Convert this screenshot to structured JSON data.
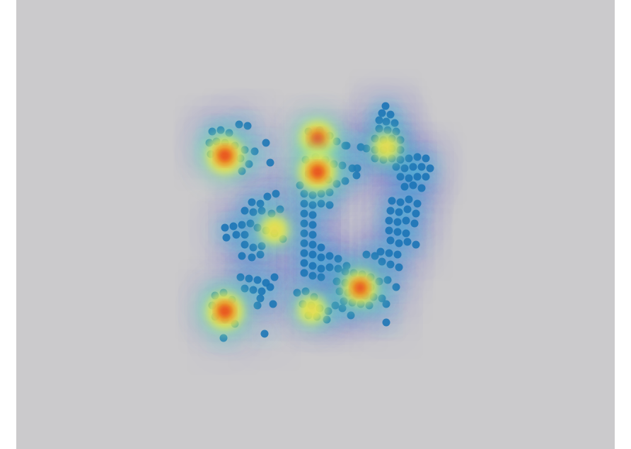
{
  "chart_data": {
    "type": "heatmap",
    "title": "",
    "xlabel": "",
    "ylabel": "",
    "background_color": "#cbcacc",
    "colormap": [
      "#4b5ad8",
      "#33bde0",
      "#7ae0b0",
      "#f2f24a",
      "#f7951e",
      "#e01a12"
    ],
    "point_color": "#1c74b6",
    "axes_visible": false,
    "grid": false,
    "hotspots": [
      {
        "x": 318,
        "y": 220,
        "intensity": 1.0
      },
      {
        "x": 449,
        "y": 196,
        "intensity": 0.95
      },
      {
        "x": 449,
        "y": 243,
        "intensity": 1.0
      },
      {
        "x": 318,
        "y": 440,
        "intensity": 1.0
      },
      {
        "x": 509,
        "y": 407,
        "intensity": 0.9
      },
      {
        "x": 441,
        "y": 438,
        "intensity": 0.7
      },
      {
        "x": 388,
        "y": 325,
        "intensity": 0.7
      },
      {
        "x": 546,
        "y": 208,
        "intensity": 0.65
      }
    ],
    "points": [
      [
        545,
        150
      ],
      [
        540,
        160
      ],
      [
        552,
        162
      ],
      [
        536,
        170
      ],
      [
        546,
        172
      ],
      [
        558,
        174
      ],
      [
        536,
        182
      ],
      [
        548,
        184
      ],
      [
        560,
        186
      ],
      [
        530,
        196
      ],
      [
        542,
        198
      ],
      [
        554,
        196
      ],
      [
        566,
        198
      ],
      [
        518,
        210
      ],
      [
        530,
        212
      ],
      [
        542,
        212
      ],
      [
        554,
        210
      ],
      [
        566,
        212
      ],
      [
        530,
        224
      ],
      [
        542,
        226
      ],
      [
        554,
        224
      ],
      [
        566,
        226
      ],
      [
        578,
        224
      ],
      [
        590,
        222
      ],
      [
        602,
        224
      ],
      [
        560,
        236
      ],
      [
        572,
        238
      ],
      [
        584,
        236
      ],
      [
        596,
        236
      ],
      [
        608,
        238
      ],
      [
        566,
        250
      ],
      [
        578,
        252
      ],
      [
        590,
        250
      ],
      [
        602,
        250
      ],
      [
        572,
        264
      ],
      [
        584,
        262
      ],
      [
        596,
        266
      ],
      [
        510,
        208
      ],
      [
        505,
        238
      ],
      [
        490,
        206
      ],
      [
        300,
        186
      ],
      [
        312,
        184
      ],
      [
        324,
        188
      ],
      [
        338,
        176
      ],
      [
        350,
        178
      ],
      [
        296,
        202
      ],
      [
        306,
        200
      ],
      [
        318,
        202
      ],
      [
        332,
        206
      ],
      [
        346,
        212
      ],
      [
        360,
        214
      ],
      [
        376,
        202
      ],
      [
        298,
        218
      ],
      [
        310,
        216
      ],
      [
        340,
        224
      ],
      [
        352,
        232
      ],
      [
        382,
        230
      ],
      [
        342,
        242
      ],
      [
        436,
        186
      ],
      [
        452,
        184
      ],
      [
        466,
        192
      ],
      [
        440,
        204
      ],
      [
        456,
        206
      ],
      [
        476,
        200
      ],
      [
        488,
        206
      ],
      [
        432,
        226
      ],
      [
        446,
        222
      ],
      [
        460,
        226
      ],
      [
        472,
        232
      ],
      [
        484,
        234
      ],
      [
        498,
        238
      ],
      [
        436,
        246
      ],
      [
        450,
        250
      ],
      [
        464,
        254
      ],
      [
        476,
        260
      ],
      [
        424,
        262
      ],
      [
        488,
        256
      ],
      [
        504,
        248
      ],
      [
        356,
        286
      ],
      [
        368,
        288
      ],
      [
        378,
        278
      ],
      [
        390,
        274
      ],
      [
        346,
        298
      ],
      [
        358,
        300
      ],
      [
        370,
        298
      ],
      [
        384,
        302
      ],
      [
        396,
        296
      ],
      [
        318,
        322
      ],
      [
        330,
        320
      ],
      [
        342,
        318
      ],
      [
        354,
        316
      ],
      [
        364,
        322
      ],
      [
        376,
        326
      ],
      [
        388,
        330
      ],
      [
        400,
        338
      ],
      [
        320,
        336
      ],
      [
        334,
        332
      ],
      [
        346,
        332
      ],
      [
        346,
        346
      ],
      [
        358,
        350
      ],
      [
        370,
        348
      ],
      [
        342,
        362
      ],
      [
        356,
        364
      ],
      [
        368,
        360
      ],
      [
        430,
        274
      ],
      [
        442,
        276
      ],
      [
        454,
        274
      ],
      [
        466,
        272
      ],
      [
        430,
        288
      ],
      [
        442,
        290
      ],
      [
        454,
        288
      ],
      [
        466,
        290
      ],
      [
        430,
        302
      ],
      [
        442,
        304
      ],
      [
        430,
        316
      ],
      [
        442,
        318
      ],
      [
        430,
        330
      ],
      [
        442,
        332
      ],
      [
        430,
        344
      ],
      [
        442,
        346
      ],
      [
        454,
        350
      ],
      [
        430,
        358
      ],
      [
        442,
        360
      ],
      [
        454,
        364
      ],
      [
        466,
        362
      ],
      [
        478,
        366
      ],
      [
        430,
        372
      ],
      [
        442,
        376
      ],
      [
        454,
        380
      ],
      [
        466,
        378
      ],
      [
        478,
        380
      ],
      [
        490,
        376
      ],
      [
        430,
        386
      ],
      [
        442,
        390
      ],
      [
        454,
        392
      ],
      [
        554,
        284
      ],
      [
        566,
        286
      ],
      [
        578,
        282
      ],
      [
        590,
        288
      ],
      [
        552,
        298
      ],
      [
        564,
        300
      ],
      [
        576,
        296
      ],
      [
        588,
        302
      ],
      [
        550,
        312
      ],
      [
        562,
        314
      ],
      [
        574,
        312
      ],
      [
        586,
        316
      ],
      [
        550,
        326
      ],
      [
        562,
        328
      ],
      [
        574,
        330
      ],
      [
        552,
        340
      ],
      [
        564,
        344
      ],
      [
        576,
        342
      ],
      [
        588,
        346
      ],
      [
        538,
        356
      ],
      [
        550,
        358
      ],
      [
        562,
        360
      ],
      [
        530,
        362
      ],
      [
        518,
        360
      ],
      [
        540,
        370
      ],
      [
        552,
        374
      ],
      [
        564,
        378
      ],
      [
        340,
        392
      ],
      [
        352,
        394
      ],
      [
        364,
        396
      ],
      [
        376,
        400
      ],
      [
        388,
        392
      ],
      [
        346,
        408
      ],
      [
        358,
        410
      ],
      [
        370,
        412
      ],
      [
        382,
        406
      ],
      [
        368,
        422
      ],
      [
        386,
        430
      ],
      [
        364,
        432
      ],
      [
        488,
        384
      ],
      [
        500,
        386
      ],
      [
        512,
        388
      ],
      [
        524,
        392
      ],
      [
        476,
        398
      ],
      [
        488,
        400
      ],
      [
        500,
        402
      ],
      [
        512,
        404
      ],
      [
        524,
        406
      ],
      [
        536,
        398
      ],
      [
        548,
        396
      ],
      [
        560,
        406
      ],
      [
        480,
        412
      ],
      [
        492,
        414
      ],
      [
        504,
        416
      ],
      [
        516,
        418
      ],
      [
        528,
        420
      ],
      [
        540,
        422
      ],
      [
        486,
        426
      ],
      [
        498,
        428
      ],
      [
        510,
        430
      ],
      [
        522,
        432
      ],
      [
        546,
        430
      ],
      [
        496,
        446
      ],
      [
        546,
        456
      ],
      [
        420,
        414
      ],
      [
        432,
        412
      ],
      [
        444,
        420
      ],
      [
        428,
        430
      ],
      [
        440,
        432
      ],
      [
        452,
        436
      ],
      [
        464,
        440
      ],
      [
        436,
        446
      ],
      [
        448,
        448
      ],
      [
        462,
        452
      ],
      [
        474,
        432
      ],
      [
        484,
        436
      ],
      [
        304,
        418
      ],
      [
        316,
        414
      ],
      [
        328,
        424
      ],
      [
        300,
        432
      ],
      [
        312,
        434
      ],
      [
        324,
        438
      ],
      [
        304,
        448
      ],
      [
        318,
        452
      ],
      [
        332,
        458
      ],
      [
        316,
        478
      ],
      [
        374,
        472
      ]
    ]
  }
}
